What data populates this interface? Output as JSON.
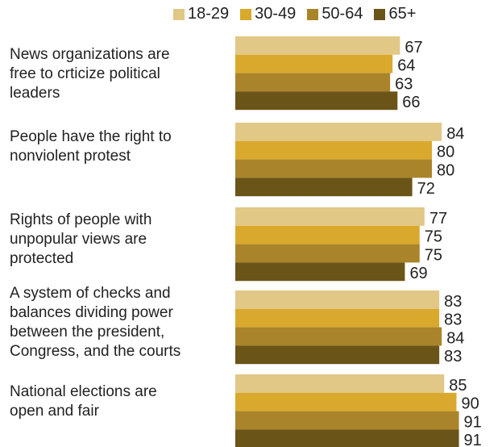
{
  "chart_data": {
    "type": "bar",
    "orientation": "horizontal",
    "legend_position": "top",
    "grid": false,
    "xlim": [
      0,
      100
    ],
    "categories": [
      "News organizations are free to crticize political leaders",
      "People have the right to nonviolent protest",
      "Rights of people with unpopular views are protected",
      "A system of checks and balances dividing power between the president, Congress, and the courts",
      "National elections are open and fair"
    ],
    "category_lines": [
      [
        "News organizations are",
        "free to crticize political",
        "leaders"
      ],
      [
        "People have the right to",
        "nonviolent protest"
      ],
      [
        "Rights of people with",
        "unpopular views are",
        "protected"
      ],
      [
        "A system of checks and",
        "balances dividing power",
        "between the president,",
        "Congress, and the courts"
      ],
      [
        "National elections are",
        "open and fair"
      ]
    ],
    "series": [
      {
        "name": "18-29",
        "color": "#e1c886",
        "values": [
          67,
          84,
          77,
          83,
          85
        ]
      },
      {
        "name": "30-49",
        "color": "#d8a92d",
        "values": [
          64,
          80,
          75,
          83,
          90
        ]
      },
      {
        "name": "50-64",
        "color": "#a9842a",
        "values": [
          63,
          80,
          75,
          84,
          91
        ]
      },
      {
        "name": "65+",
        "color": "#6b5418",
        "values": [
          66,
          72,
          69,
          83,
          91
        ]
      }
    ]
  }
}
